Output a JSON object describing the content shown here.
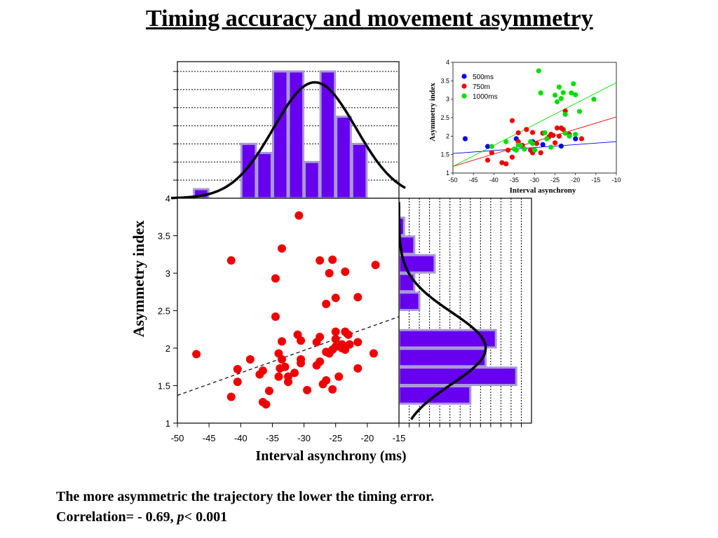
{
  "title": "Timing accuracy and movement asymmetry",
  "caption": {
    "line1": "The more asymmetric the trajectory the lower the timing error.",
    "line2_prefix": "Correlation= - 0.69, ",
    "line2_p": "p",
    "line2_suffix": "< 0.001"
  },
  "chart_data": [
    {
      "type": "scatter",
      "xlabel": "Interval asynchrony (ms)",
      "ylabel": "Asymmetry index",
      "xlim": [
        -50,
        -15
      ],
      "ylim": [
        1,
        4
      ],
      "x_ticks": [
        "-50",
        "-45",
        "-40",
        "-35",
        "-30",
        "-25",
        "-20",
        "-15"
      ],
      "y_ticks": [
        "1",
        "1.5",
        "2",
        "2.5",
        "3",
        "3.5",
        "4"
      ],
      "color": "#ee0000",
      "fit_line": {
        "x": [
          -50,
          -15
        ],
        "y": [
          1.37,
          2.42
        ],
        "style": "dashed"
      },
      "points": [
        [
          -30.8,
          3.77
        ],
        [
          -33.5,
          3.33
        ],
        [
          -41.5,
          3.17
        ],
        [
          -27.5,
          3.17
        ],
        [
          -25.5,
          3.18
        ],
        [
          -18.7,
          3.11
        ],
        [
          -34.5,
          2.93
        ],
        [
          -26.0,
          3.0
        ],
        [
          -23.5,
          3.02
        ],
        [
          -25.0,
          2.67
        ],
        [
          -21.5,
          2.68
        ],
        [
          -26.5,
          2.59
        ],
        [
          -34.5,
          2.42
        ],
        [
          -47.0,
          1.92
        ],
        [
          -38.5,
          1.85
        ],
        [
          -40.5,
          1.72
        ],
        [
          -37.0,
          1.65
        ],
        [
          -36.5,
          1.7
        ],
        [
          -34.0,
          1.93
        ],
        [
          -33.5,
          1.85
        ],
        [
          -33.5,
          2.09
        ],
        [
          -33.8,
          1.73
        ],
        [
          -33.0,
          1.75
        ],
        [
          -32.5,
          1.62
        ],
        [
          -34.0,
          1.62
        ],
        [
          -32.5,
          1.55
        ],
        [
          -31.0,
          2.18
        ],
        [
          -30.5,
          2.1
        ],
        [
          -30.5,
          1.8
        ],
        [
          -31.5,
          1.67
        ],
        [
          -30.5,
          1.85
        ],
        [
          -29.5,
          1.44
        ],
        [
          -28.0,
          1.77
        ],
        [
          -27.5,
          1.82
        ],
        [
          -28.0,
          2.08
        ],
        [
          -27.0,
          1.52
        ],
        [
          -26.5,
          1.57
        ],
        [
          -26.0,
          1.93
        ],
        [
          -25.5,
          1.98
        ],
        [
          -25.0,
          2.02
        ],
        [
          -25.0,
          2.22
        ],
        [
          -24.5,
          1.62
        ],
        [
          -24.0,
          2.05
        ],
        [
          -23.5,
          1.98
        ],
        [
          -23.5,
          2.22
        ],
        [
          -23.0,
          2.18
        ],
        [
          -22.8,
          2.05
        ],
        [
          -21.5,
          1.73
        ],
        [
          -21.5,
          2.08
        ],
        [
          -19.0,
          1.93
        ],
        [
          -25.5,
          1.45
        ],
        [
          -35.5,
          1.43
        ],
        [
          -36.5,
          1.28
        ],
        [
          -36.0,
          1.25
        ],
        [
          -40.5,
          1.55
        ],
        [
          -41.5,
          1.35
        ],
        [
          -25.0,
          2.12
        ],
        [
          -27.5,
          2.15
        ],
        [
          -24.0,
          2.0
        ],
        [
          -26.5,
          1.95
        ]
      ]
    },
    {
      "type": "bar",
      "orientation": "vertical",
      "description_of_axis": "x-marginal histogram of Interval asynchrony",
      "bin_edges": [
        -50,
        -47.5,
        -45,
        -42.5,
        -40,
        -37.5,
        -35,
        -32.5,
        -30,
        -27.5,
        -25,
        -22.5,
        -20,
        -17.5,
        -15
      ],
      "values": [
        0,
        0.5,
        0,
        0,
        3,
        2.5,
        7,
        7,
        2,
        7,
        4.5,
        3,
        0,
        0
      ],
      "ylim": [
        0,
        7
      ],
      "color": "#6600ee",
      "curve": "gaussian fit",
      "curve_params": {
        "mean": -28.3,
        "sd": 6.5,
        "peak": 6.4
      }
    },
    {
      "type": "bar",
      "orientation": "horizontal",
      "description_of_axis": "y-marginal histogram of Asymmetry index",
      "bin_edges": [
        1.25,
        1.5,
        1.75,
        2,
        2.25,
        2.5,
        2.75,
        3,
        3.25,
        3.5,
        3.75
      ],
      "values": [
        7,
        11.5,
        8.5,
        9.5,
        0,
        2,
        1.5,
        3.5,
        1.5,
        0.5
      ],
      "xlim": [
        0,
        13
      ],
      "color": "#6600ee",
      "curve": "gaussian fit",
      "curve_params": {
        "mean": 2.0,
        "sd": 0.48,
        "peak": 8.5
      }
    },
    {
      "type": "scatter",
      "xlabel": "Interval asynchrony",
      "ylabel": "Asymmetry index",
      "xlim": [
        -50,
        -10
      ],
      "ylim": [
        1,
        4
      ],
      "x_ticks": [
        "-50",
        "-45",
        "-40",
        "-35",
        "-30",
        "-25",
        "-20",
        "-15",
        "-10"
      ],
      "y_ticks": [
        "1",
        "1.5",
        "2",
        "2.5",
        "3",
        "3.5",
        "4"
      ],
      "legend": [
        {
          "label": "500ms",
          "color": "#0000ee"
        },
        {
          "label": "750m",
          "color": "#ee0000"
        },
        {
          "label": "1000ms",
          "color": "#00dd00"
        }
      ],
      "series": [
        {
          "name": "500ms",
          "color": "#0000ee",
          "fit": {
            "x": [
              -50,
              -10
            ],
            "y": [
              1.53,
              1.85
            ]
          },
          "points": [
            [
              -47,
              1.93
            ],
            [
              -41.5,
              1.72
            ],
            [
              -34.5,
              1.93
            ],
            [
              -30.5,
              1.85
            ],
            [
              -28,
              1.77
            ],
            [
              -23.5,
              1.73
            ],
            [
              -20,
              1.93
            ]
          ]
        },
        {
          "name": "750m",
          "color": "#ee0000",
          "fit": {
            "x": [
              -50,
              -10
            ],
            "y": [
              1.18,
              2.52
            ]
          },
          "points": [
            [
              -41.5,
              1.35
            ],
            [
              -40.5,
              1.55
            ],
            [
              -38,
              1.28
            ],
            [
              -37,
              1.25
            ],
            [
              -36.5,
              1.62
            ],
            [
              -35.5,
              1.43
            ],
            [
              -35.5,
              2.42
            ],
            [
              -34,
              2.09
            ],
            [
              -34,
              1.85
            ],
            [
              -33,
              1.75
            ],
            [
              -32.5,
              1.65
            ],
            [
              -32,
              2.18
            ],
            [
              -31,
              1.62
            ],
            [
              -30.5,
              1.55
            ],
            [
              -30.5,
              2.1
            ],
            [
              -29.5,
              1.8
            ],
            [
              -28.5,
              1.55
            ],
            [
              -28,
              2.08
            ],
            [
              -27,
              1.93
            ],
            [
              -26.5,
              1.98
            ],
            [
              -26,
              2.05
            ],
            [
              -25.5,
              2.02
            ],
            [
              -25,
              1.82
            ],
            [
              -24.5,
              2.22
            ],
            [
              -24,
              2.0
            ],
            [
              -23.5,
              2.22
            ],
            [
              -23,
              2.18
            ],
            [
              -22.5,
              2.68
            ],
            [
              -21.5,
              2.05
            ],
            [
              -18.5,
              1.93
            ]
          ]
        },
        {
          "name": "1000ms",
          "color": "#00dd00",
          "fit": {
            "x": [
              -50,
              -10
            ],
            "y": [
              1.18,
              3.45
            ]
          },
          "points": [
            [
              -40.5,
              1.72
            ],
            [
              -37,
              1.85
            ],
            [
              -35,
              1.65
            ],
            [
              -34.5,
              1.62
            ],
            [
              -34,
              1.76
            ],
            [
              -33.5,
              1.75
            ],
            [
              -32.5,
              1.65
            ],
            [
              -31,
              1.85
            ],
            [
              -30.5,
              1.8
            ],
            [
              -30,
              1.62
            ],
            [
              -29,
              3.77
            ],
            [
              -28.5,
              3.17
            ],
            [
              -27.5,
              2.09
            ],
            [
              -27,
              1.93
            ],
            [
              -26,
              1.7
            ],
            [
              -25,
              3.11
            ],
            [
              -24.5,
              2.93
            ],
            [
              -24,
              3.33
            ],
            [
              -23.5,
              3.02
            ],
            [
              -23,
              3.18
            ],
            [
              -22.5,
              2.59
            ],
            [
              -22.5,
              2.08
            ],
            [
              -21.5,
              2.0
            ],
            [
              -21,
              3.17
            ],
            [
              -20.5,
              3.42
            ],
            [
              -20,
              3.12
            ],
            [
              -20,
              2.05
            ],
            [
              -19,
              2.67
            ],
            [
              -15.5,
              3.0
            ]
          ]
        }
      ]
    }
  ]
}
